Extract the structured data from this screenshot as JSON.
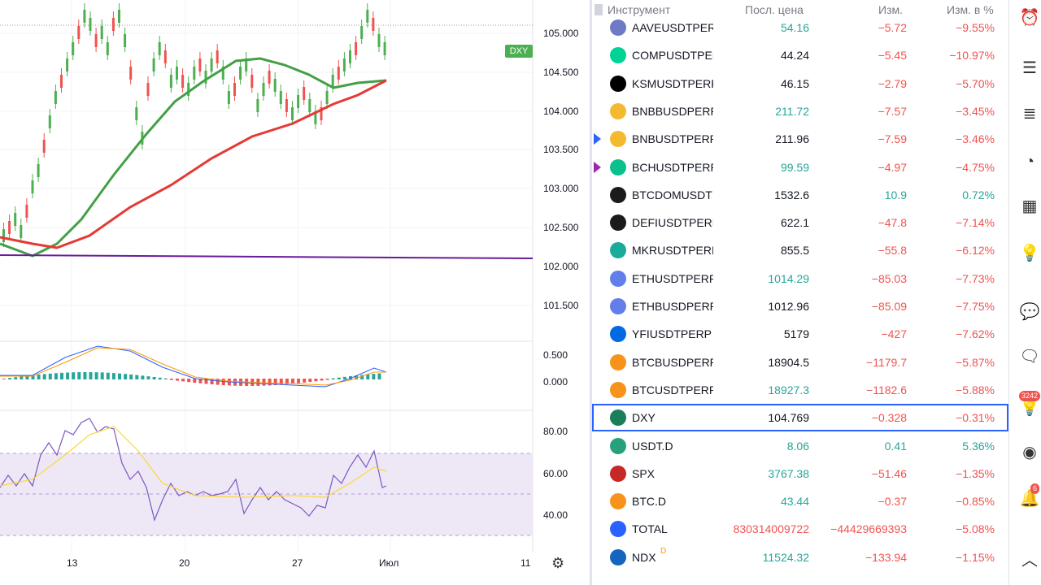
{
  "chart": {
    "symbol_badge": "DXY",
    "price_labels": [
      "105.000",
      "104.500",
      "104.000",
      "103.500",
      "103.000",
      "102.500",
      "102.000",
      "101.500"
    ],
    "macd_labels": [
      "0.500",
      "0.000"
    ],
    "rsi_labels": [
      "80.00",
      "60.00",
      "40.00"
    ],
    "time_labels": [
      "13",
      "20",
      "27",
      "Июл",
      "11"
    ],
    "colors": {
      "up": "#4caf50",
      "down": "#ef5350",
      "ma_fast": "#43a047",
      "ma_slow": "#e53935",
      "level": "#6a1b9a",
      "rsi": "#7e57c2",
      "rsi_band": "#ede7f6"
    }
  },
  "watchlist": {
    "headers": {
      "symbol": "Инструмент",
      "last": "Посл. цена",
      "change": "Изм.",
      "change_pct": "Изм. в %"
    },
    "rows": [
      {
        "symbol": "AAVEUSDTPERP",
        "last": "54.16",
        "change": "−5.72",
        "pct": "−9.55%",
        "icon": "aave-icon",
        "icon_color": "#6e7bc4",
        "dir": "up"
      },
      {
        "symbol": "COMPUSDTPERP",
        "last": "44.24",
        "change": "−5.45",
        "pct": "−10.97%",
        "icon": "comp-icon",
        "icon_color": "#00d395",
        "dir": "neutral"
      },
      {
        "symbol": "KSMUSDTPERP",
        "last": "46.15",
        "change": "−2.79",
        "pct": "−5.70%",
        "icon": "ksm-icon",
        "icon_color": "#000000",
        "dir": "neutral"
      },
      {
        "symbol": "BNBBUSDPERP",
        "last": "211.72",
        "change": "−7.57",
        "pct": "−3.45%",
        "icon": "bnb-icon",
        "icon_color": "#f3ba2f",
        "dir": "up"
      },
      {
        "symbol": "BNBUSDTPERP",
        "last": "211.96",
        "change": "−7.59",
        "pct": "−3.46%",
        "icon": "bnb-icon",
        "icon_color": "#f3ba2f",
        "dir": "neutral",
        "flag": "#2962ff"
      },
      {
        "symbol": "BCHUSDTPERP",
        "last": "99.59",
        "change": "−4.97",
        "pct": "−4.75%",
        "icon": "bch-icon",
        "icon_color": "#0ac18e",
        "dir": "up",
        "flag": "#9c27b0"
      },
      {
        "symbol": "BTCDOMUSDT",
        "last": "1532.6",
        "change": "10.9",
        "pct": "0.72%",
        "icon": "btcdom-icon",
        "icon_color": "#1b1b1b",
        "dir": "neutral",
        "chg_dir": "up"
      },
      {
        "symbol": "DEFIUSDTPERP",
        "last": "622.1",
        "change": "−47.8",
        "pct": "−7.14%",
        "icon": "defi-icon",
        "icon_color": "#1b1b1b",
        "dir": "neutral"
      },
      {
        "symbol": "MKRUSDTPERP",
        "last": "855.5",
        "change": "−55.8",
        "pct": "−6.12%",
        "icon": "mkr-icon",
        "icon_color": "#1aab9b",
        "dir": "neutral"
      },
      {
        "symbol": "ETHUSDTPERP",
        "last": "1014.29",
        "change": "−85.03",
        "pct": "−7.73%",
        "icon": "eth-icon",
        "icon_color": "#627eea",
        "dir": "up"
      },
      {
        "symbol": "ETHBUSDPERP",
        "last": "1012.96",
        "change": "−85.09",
        "pct": "−7.75%",
        "icon": "eth-icon",
        "icon_color": "#627eea",
        "dir": "neutral"
      },
      {
        "symbol": "YFIUSDTPERP",
        "last": "5179",
        "change": "−427",
        "pct": "−7.62%",
        "icon": "yfi-icon",
        "icon_color": "#006ae3",
        "dir": "neutral"
      },
      {
        "symbol": "BTCBUSDPERP",
        "last": "18904.5",
        "change": "−1179.7",
        "pct": "−5.87%",
        "icon": "btc-icon",
        "icon_color": "#f7931a",
        "dir": "neutral"
      },
      {
        "symbol": "BTCUSDTPERP",
        "last": "18927.3",
        "change": "−1182.6",
        "pct": "−5.88%",
        "icon": "btc-icon",
        "icon_color": "#f7931a",
        "dir": "up"
      },
      {
        "symbol": "DXY",
        "last": "104.769",
        "change": "−0.328",
        "pct": "−0.31%",
        "icon": "dollar-icon",
        "icon_color": "#1b7e5a",
        "dir": "neutral",
        "selected": true
      },
      {
        "symbol": "USDT.D",
        "last": "8.06",
        "change": "0.41",
        "pct": "5.36%",
        "icon": "usdt-icon",
        "icon_color": "#26a17b",
        "dir": "up",
        "chg_dir": "up"
      },
      {
        "symbol": "SPX",
        "last": "3767.38",
        "change": "−51.46",
        "pct": "−1.35%",
        "icon": "sp500-icon",
        "icon_color": "#c62828",
        "dir": "up"
      },
      {
        "symbol": "BTC.D",
        "last": "43.44",
        "change": "−0.37",
        "pct": "−0.85%",
        "icon": "btc-icon",
        "icon_color": "#f7931a",
        "dir": "up"
      },
      {
        "symbol": "TOTAL",
        "last": "830314009722",
        "change": "−44429669393",
        "pct": "−5.08%",
        "icon": "globe-icon",
        "icon_color": "#2962ff",
        "dir": "down"
      },
      {
        "symbol": "NDX",
        "last": "11524.32",
        "change": "−133.94",
        "pct": "−1.15%",
        "icon": "ndx-icon",
        "icon_color": "#1565c0",
        "dir": "up",
        "sup": "D"
      }
    ]
  },
  "toolbar": {
    "items": [
      "alarm-clock-icon",
      "news-icon",
      "watchlist-details-icon",
      "pie-chart-icon",
      "calendar-icon",
      "lightbulb-icon",
      "chat-icon",
      "comments-icon",
      "ideas-icon",
      "stream-icon",
      "notifications-icon",
      "collapse-icon"
    ],
    "badge_ideas": "3242",
    "badge_notif": "6"
  }
}
